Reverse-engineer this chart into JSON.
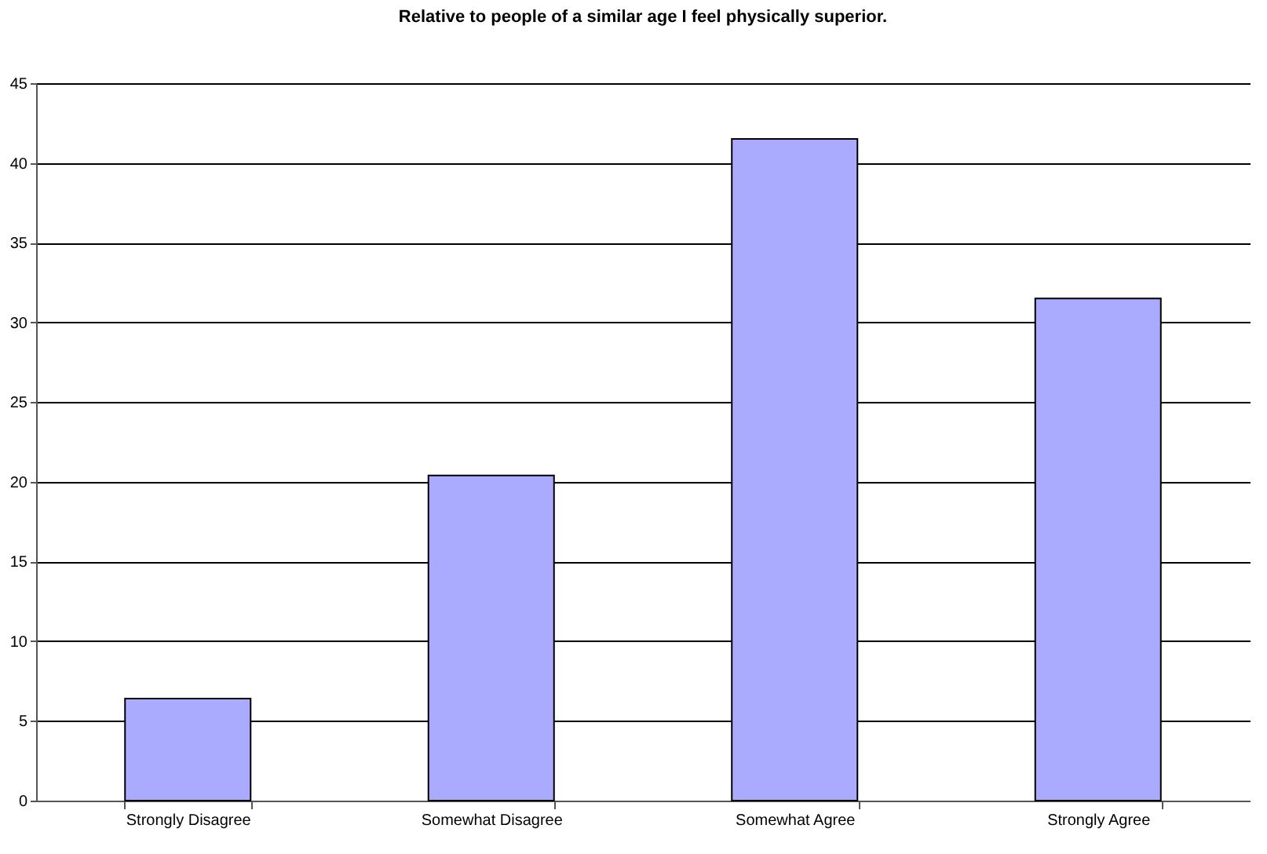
{
  "chart_data": {
    "type": "bar",
    "title": "Relative to people of a similar age I feel physically superior.",
    "categories": [
      "Strongly Disagree",
      "Somewhat Disagree",
      "Somewhat Agree",
      "Strongly Agree"
    ],
    "values": [
      6.4,
      20.4,
      41.5,
      31.5
    ],
    "color": "#aaaaff",
    "ylim": [
      0,
      45
    ],
    "yticks": [
      0,
      5,
      10,
      15,
      20,
      25,
      30,
      35,
      40,
      45
    ],
    "grid": "y"
  }
}
